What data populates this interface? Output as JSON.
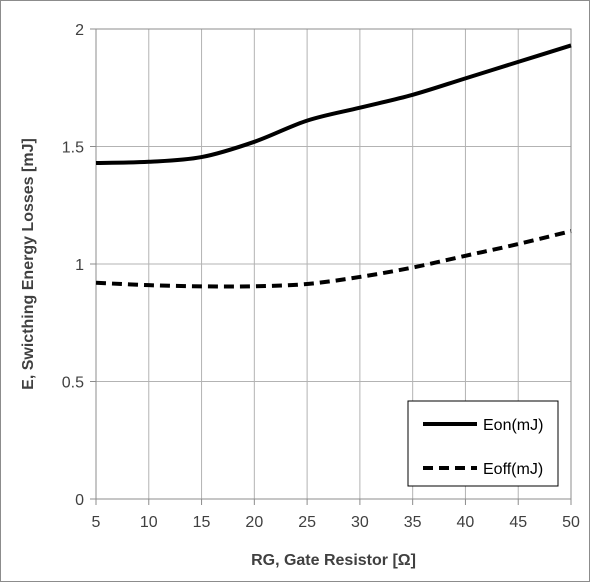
{
  "chart_data": {
    "type": "line",
    "title": "",
    "xlabel": "RG, Gate Resistor [Ω]",
    "ylabel": "E, Swicthing Energy Losses [mJ]",
    "xlim": [
      5,
      50
    ],
    "ylim": [
      0,
      2
    ],
    "xticks": [
      "5",
      "10",
      "15",
      "20",
      "25",
      "30",
      "35",
      "40",
      "45",
      "50"
    ],
    "yticks": [
      "0",
      "0.5",
      "1",
      "1.5",
      "2"
    ],
    "grid": true,
    "legend_position": "bottom-right",
    "x": [
      5,
      10,
      15,
      20,
      25,
      30,
      35,
      40,
      45,
      50
    ],
    "series": [
      {
        "name": "Eon(mJ)",
        "style": "solid",
        "color": "#000000",
        "values": [
          1.43,
          1.435,
          1.455,
          1.52,
          1.61,
          1.665,
          1.72,
          1.79,
          1.86,
          1.93
        ]
      },
      {
        "name": "Eoff(mJ)",
        "style": "dashed",
        "color": "#000000",
        "values": [
          0.92,
          0.91,
          0.905,
          0.905,
          0.915,
          0.945,
          0.985,
          1.035,
          1.085,
          1.14
        ]
      }
    ]
  }
}
